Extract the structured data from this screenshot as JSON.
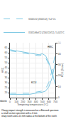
{
  "chart_data": {
    "type": "line",
    "xlabel": "Tempering temperature (°C)",
    "ylabel": "HRC",
    "y2label": "KCU (J/cm²)",
    "xlim": [
      0,
      700
    ],
    "xticks": [
      0,
      100,
      200,
      300,
      400,
      500,
      600,
      700
    ],
    "ylim": [
      15,
      70
    ],
    "yticks": [
      20,
      25,
      30,
      35,
      40,
      45,
      50,
      55,
      60,
      65
    ],
    "y2lim": [
      0,
      50
    ],
    "y2ticks": [
      0,
      10,
      20,
      30,
      40,
      50
    ],
    "grid": true,
    "legend": "upper right",
    "series": [
      {
        "name": "X200Cr12 (Z200C12), T=1°C/s",
        "color": "#7ec8e3",
        "line_style": "dashed",
        "x": [
          0,
          100,
          200,
          300,
          400,
          450,
          500,
          550,
          600,
          650,
          700
        ],
        "values": [
          62,
          61,
          60,
          59,
          58,
          57,
          58,
          55,
          48,
          40,
          30
        ]
      },
      {
        "name": "X165CrMoV12 (Z160CDV12), T=1025°C",
        "color": "#7ec8e3",
        "line_style": "solid",
        "x": [
          0,
          100,
          200,
          300,
          400,
          450,
          500,
          550,
          600,
          650,
          700
        ],
        "values": [
          63,
          62,
          61,
          60,
          59,
          58,
          59,
          57,
          50,
          40,
          28
        ]
      },
      {
        "name": "X200Cr12 (Z200C12), T=1°C/s",
        "color": "#7ec8e3",
        "line_style": "dashed",
        "axis": "y2",
        "x": [
          0,
          100,
          200,
          300,
          400,
          500,
          550,
          600,
          650,
          700
        ],
        "values": [
          4,
          4,
          4,
          4,
          5,
          6,
          8,
          14,
          25,
          40
        ]
      },
      {
        "name": "X165CrMoV12 (Z160CDV12), T=1025°C",
        "color": "#7ec8e3",
        "line_style": "solid",
        "axis": "y2",
        "x": [
          0,
          100,
          200,
          300,
          400,
          500,
          550,
          600,
          650,
          700
        ],
        "values": [
          3,
          3,
          3,
          3,
          4,
          5,
          6,
          10,
          18,
          32
        ]
      }
    ],
    "annotations": [
      "KCU",
      "HRC",
      "Ambiente"
    ],
    "notes": [
      "Charpy impact strength is measured on a Brinvord specimen",
      "a small section specimen with a 2 mm",
      "sharp notch and a 15 mm radius at the bottom of the notch"
    ]
  }
}
